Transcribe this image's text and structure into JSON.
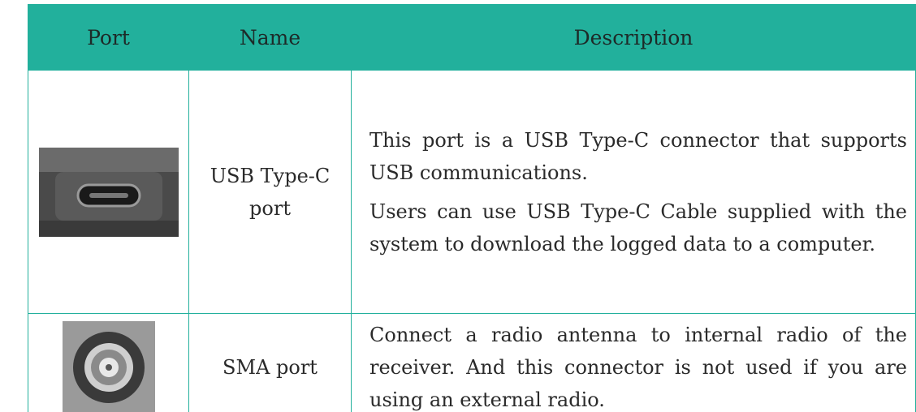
{
  "table": {
    "header": [
      "Port",
      "Name",
      "Description"
    ],
    "rows": [
      {
        "name": "USB Type-C port",
        "description": [
          "This port is a USB Type-C connector that supports USB communications.",
          "Users can use USB Type-C Cable supplied with the system to download the logged data to a computer."
        ]
      },
      {
        "name": "SMA port",
        "description": [
          "Connect a radio antenna to internal radio of the receiver. And this connector is not used if you are using an external radio."
        ]
      }
    ]
  }
}
